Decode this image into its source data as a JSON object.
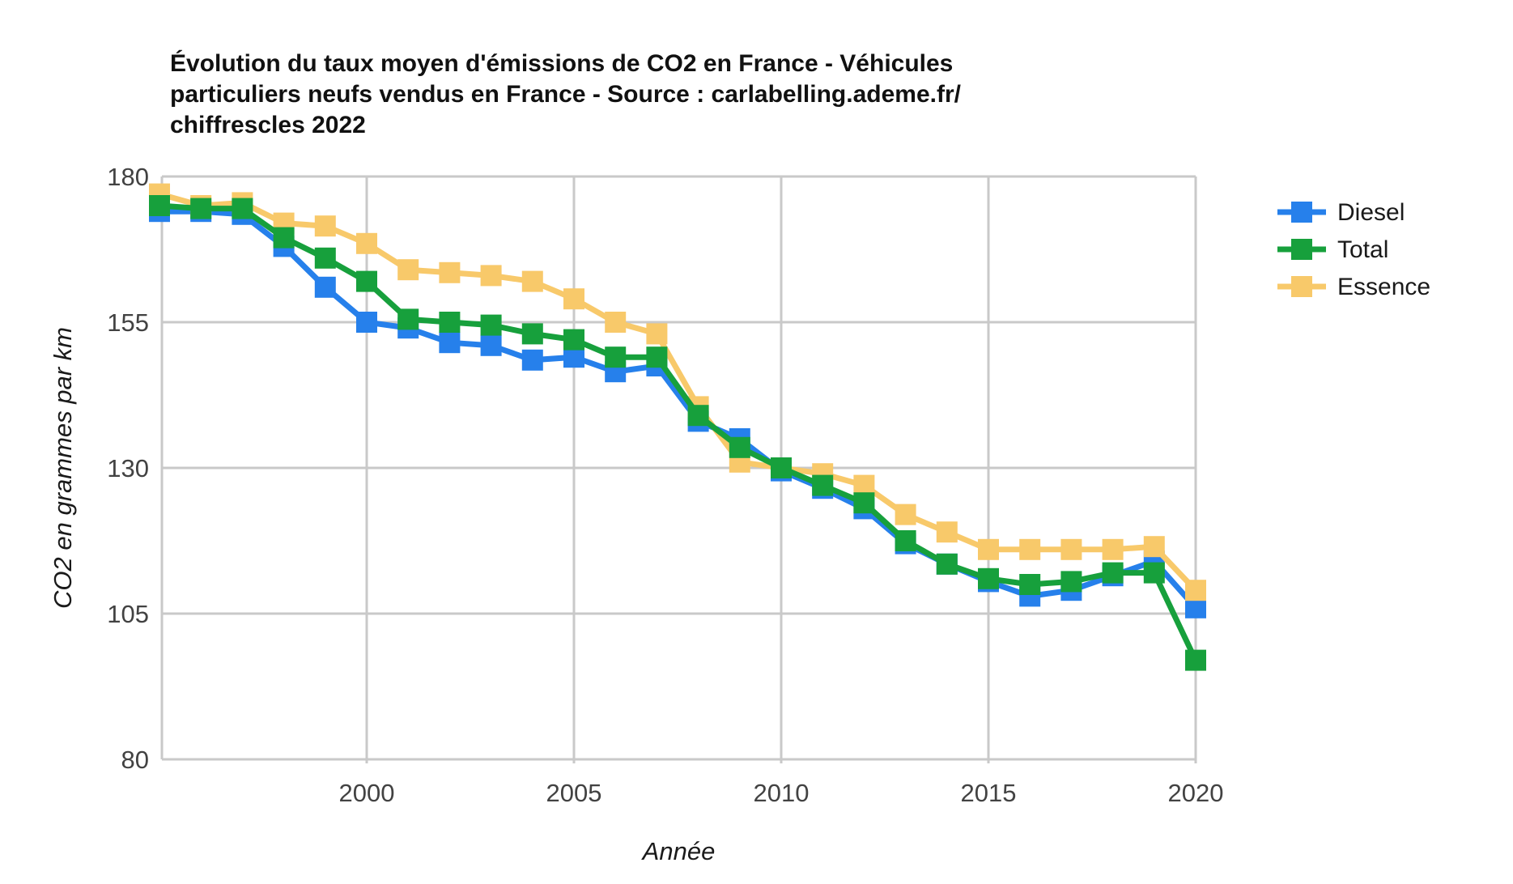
{
  "title_lines": [
    "Évolution du taux moyen d'émissions de CO2 en France - Véhicules",
    "particuliers neufs vendus en France - Source : carlabelling.ademe.fr/",
    "chiffrescles 2022"
  ],
  "chart_data": {
    "type": "line",
    "title": "Évolution du taux moyen d'émissions de CO2 en France - Véhicules particuliers neufs vendus en France - Source : carlabelling.ademe.fr/chiffrescles 2022",
    "xlabel": "Année",
    "ylabel": "CO2 en grammes par km",
    "x": [
      1995,
      1996,
      1997,
      1998,
      1999,
      2000,
      2001,
      2002,
      2003,
      2004,
      2005,
      2006,
      2007,
      2008,
      2009,
      2010,
      2011,
      2012,
      2013,
      2014,
      2015,
      2016,
      2017,
      2018,
      2019,
      2020
    ],
    "xlim": [
      1995,
      2020
    ],
    "ylim": [
      80,
      180
    ],
    "xticks": [
      2000,
      2005,
      2010,
      2015,
      2020
    ],
    "yticks": [
      80,
      105,
      130,
      155,
      180
    ],
    "grid": true,
    "legend_position": "right",
    "background_color": "#ffffff",
    "grid_color": "#c9c9c9",
    "tick_label_color": "#424242",
    "series": [
      {
        "name": "Diesel",
        "color": "#2680eb",
        "values": [
          174,
          174,
          173.5,
          168,
          161,
          155,
          154,
          151.5,
          151,
          148.5,
          149,
          146.5,
          147.5,
          138,
          135,
          129.5,
          126.5,
          123,
          117,
          113.5,
          110.5,
          108,
          109,
          111.5,
          114,
          106
        ]
      },
      {
        "name": "Total",
        "color": "#17a03c",
        "values": [
          175,
          174.5,
          174.5,
          169.5,
          166,
          162,
          155.5,
          155,
          154.5,
          153,
          152,
          149,
          149,
          139,
          133.5,
          130,
          127,
          124,
          117.5,
          113.5,
          111,
          110,
          110.5,
          112,
          112,
          97
        ]
      },
      {
        "name": "Essence",
        "color": "#f8c96a",
        "values": [
          177,
          175,
          175.5,
          172,
          171.5,
          168.5,
          164,
          163.5,
          163,
          162,
          159,
          155,
          153,
          140.5,
          131,
          130,
          129,
          127,
          122,
          119,
          116,
          116,
          116,
          116,
          116.5,
          109
        ]
      }
    ]
  }
}
